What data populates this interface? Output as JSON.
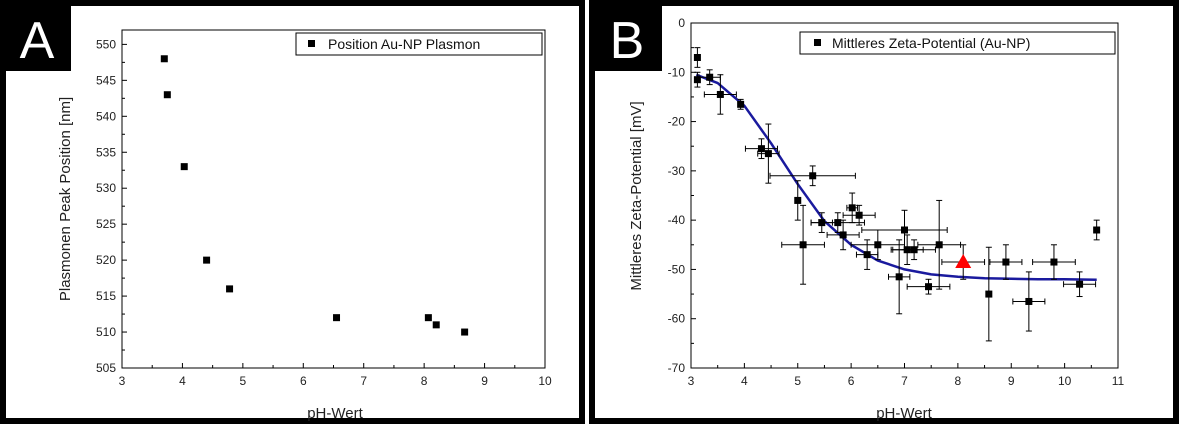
{
  "chart_data": [
    {
      "panel": "A",
      "type": "scatter",
      "xlabel": "pH-Wert",
      "ylabel": "Plasmonen Peak Position [nm]",
      "xlim": [
        3,
        10
      ],
      "ylim": [
        505,
        552
      ],
      "xticks": [
        3,
        4,
        5,
        6,
        7,
        8,
        9,
        10
      ],
      "yticks": [
        505,
        510,
        515,
        520,
        525,
        530,
        535,
        540,
        545,
        550
      ],
      "legend_position": "top-right",
      "series": [
        {
          "name": "Position Au-NP Plasmon",
          "color": "#000000",
          "marker": "square",
          "x": [
            3.7,
            3.75,
            4.03,
            4.4,
            4.78,
            6.55,
            8.07,
            8.2,
            8.67
          ],
          "y": [
            548,
            543,
            533,
            520,
            516,
            512,
            512,
            511,
            510
          ]
        }
      ]
    },
    {
      "panel": "B",
      "type": "scatter",
      "xlabel": "pH-Wert",
      "ylabel": "Mittleres Zeta-Potential [mV]",
      "xlim": [
        3,
        11
      ],
      "ylim": [
        -70,
        0
      ],
      "xticks": [
        3,
        4,
        5,
        6,
        7,
        8,
        9,
        10,
        11
      ],
      "yticks": [
        0,
        -10,
        -20,
        -30,
        -40,
        -50,
        -60,
        -70
      ],
      "legend_position": "top-right",
      "series": [
        {
          "name": "Mittleres Zeta-Potential (Au-NP)",
          "color": "#000000",
          "marker": "square",
          "points": [
            {
              "x": 3.12,
              "y": -7,
              "xerr": 0,
              "yerr": 2
            },
            {
              "x": 3.12,
              "y": -11.5,
              "xerr": 0,
              "yerr": 1.5
            },
            {
              "x": 3.35,
              "y": -11,
              "xerr": 0.2,
              "yerr": 1.5
            },
            {
              "x": 3.55,
              "y": -14.5,
              "xerr": 0.3,
              "yerr": 4
            },
            {
              "x": 3.93,
              "y": -16.5,
              "xerr": 0,
              "yerr": 1
            },
            {
              "x": 4.32,
              "y": -25.5,
              "xerr": 0.3,
              "yerr": 2
            },
            {
              "x": 4.45,
              "y": -26.5,
              "xerr": 0.2,
              "yerr": 6
            },
            {
              "x": 5.0,
              "y": -36,
              "xerr": 0,
              "yerr": 4
            },
            {
              "x": 5.1,
              "y": -45,
              "xerr": 0.4,
              "yerr": 8
            },
            {
              "x": 5.28,
              "y": -31,
              "xerr": 0.8,
              "yerr": 2
            },
            {
              "x": 5.45,
              "y": -40.5,
              "xerr": 0.2,
              "yerr": 2
            },
            {
              "x": 5.75,
              "y": -40.5,
              "xerr": 0.5,
              "yerr": 2
            },
            {
              "x": 5.85,
              "y": -43,
              "xerr": 0.3,
              "yerr": 3
            },
            {
              "x": 6.02,
              "y": -37.5,
              "xerr": 0.1,
              "yerr": 3
            },
            {
              "x": 6.15,
              "y": -39,
              "xerr": 0.3,
              "yerr": 2
            },
            {
              "x": 6.3,
              "y": -47,
              "xerr": 0.2,
              "yerr": 3
            },
            {
              "x": 6.5,
              "y": -45,
              "xerr": 0.5,
              "yerr": 3
            },
            {
              "x": 6.9,
              "y": -51.5,
              "xerr": 0.2,
              "yerr": 7.5
            },
            {
              "x": 7.0,
              "y": -42,
              "xerr": 0.8,
              "yerr": 4
            },
            {
              "x": 7.05,
              "y": -46,
              "xerr": 0.3,
              "yerr": 3
            },
            {
              "x": 7.18,
              "y": -46,
              "xerr": 0.4,
              "yerr": 2
            },
            {
              "x": 7.45,
              "y": -53.5,
              "xerr": 0.4,
              "yerr": 1.5
            },
            {
              "x": 7.65,
              "y": -45,
              "xerr": 0.4,
              "yerr": 9
            },
            {
              "x": 8.58,
              "y": -55,
              "xerr": 0,
              "yerr": 9.5
            },
            {
              "x": 8.9,
              "y": -48.5,
              "xerr": 0.3,
              "yerr": 3.5
            },
            {
              "x": 9.33,
              "y": -56.5,
              "xerr": 0.3,
              "yerr": 6
            },
            {
              "x": 9.8,
              "y": -48.5,
              "xerr": 0.4,
              "yerr": 3.5
            },
            {
              "x": 10.28,
              "y": -53,
              "xerr": 0.3,
              "yerr": 2.5
            },
            {
              "x": 10.6,
              "y": -42,
              "xerr": 0,
              "yerr": 2
            }
          ]
        },
        {
          "name": "",
          "color": "#ff0000",
          "marker": "triangle",
          "points": [
            {
              "x": 8.1,
              "y": -48.5,
              "xerr": 0.4,
              "yerr": 3.5
            }
          ]
        },
        {
          "name": "",
          "type": "line",
          "color": "#1a1a9e",
          "x": [
            3.1,
            3.5,
            4.0,
            4.5,
            5.0,
            5.5,
            6.0,
            6.5,
            7.0,
            7.5,
            8.0,
            8.5,
            9.0,
            9.5,
            10.0,
            10.6
          ],
          "y": [
            -10.5,
            -12.2,
            -16.8,
            -24.4,
            -32.7,
            -40.2,
            -45.0,
            -48.2,
            -50.0,
            -51.0,
            -51.5,
            -51.8,
            -51.9,
            -52.0,
            -52.0,
            -52.1
          ]
        }
      ]
    }
  ]
}
